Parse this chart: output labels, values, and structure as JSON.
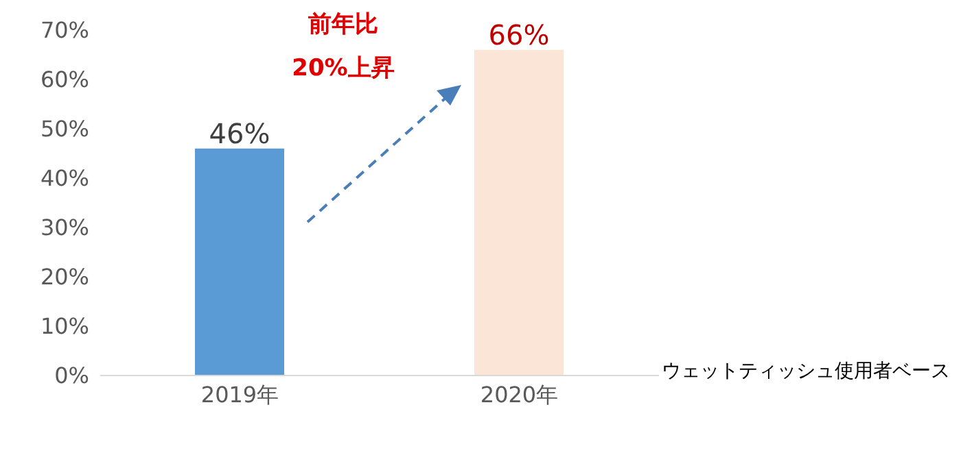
{
  "chart_data": {
    "type": "bar",
    "categories": [
      "2019年",
      "2020年"
    ],
    "values": [
      46,
      66
    ],
    "colors": [
      "#5b9bd5",
      "#fbe5d6"
    ],
    "value_labels": [
      "46%",
      "66%"
    ],
    "ylim": [
      0,
      70
    ],
    "yticks": [
      {
        "value": 0,
        "label": "0%"
      },
      {
        "value": 10,
        "label": "10%"
      },
      {
        "value": 20,
        "label": "20%"
      },
      {
        "value": 30,
        "label": "30%"
      },
      {
        "value": 40,
        "label": "40%"
      },
      {
        "value": 50,
        "label": "50%"
      },
      {
        "value": 60,
        "label": "60%"
      },
      {
        "value": 70,
        "label": "70%"
      }
    ],
    "grid": false,
    "legend": false,
    "annotations": [
      "前年比",
      "20%上昇",
      "ウェットティッシュ使用者ベース"
    ]
  }
}
